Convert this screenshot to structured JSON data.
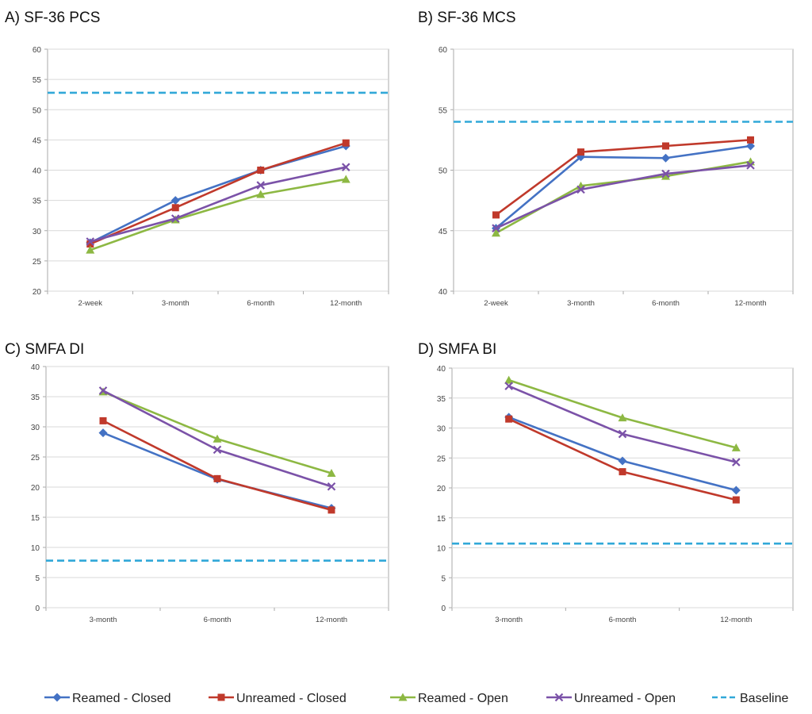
{
  "colors": {
    "reamed_closed": "#4472C4",
    "unreamed_closed": "#C0392B",
    "reamed_open": "#8DB843",
    "unreamed_open": "#7B52A8",
    "baseline": "#31A8D8",
    "grid": "#d9d9d9",
    "axis": "#aaaaaa"
  },
  "legend": {
    "items": [
      {
        "key": "reamed_closed",
        "label": "Reamed - Closed",
        "marker": "diamond"
      },
      {
        "key": "unreamed_closed",
        "label": "Unreamed - Closed",
        "marker": "square"
      },
      {
        "key": "reamed_open",
        "label": "Reamed - Open",
        "marker": "triangle"
      },
      {
        "key": "unreamed_open",
        "label": "Unreamed - Open",
        "marker": "x"
      },
      {
        "key": "baseline",
        "label": "Baseline",
        "marker": "dash"
      }
    ]
  },
  "chart_data": [
    {
      "type": "line",
      "title": "A) SF-36 PCS",
      "categories": [
        "2-week",
        "3-month",
        "6-month",
        "12-month"
      ],
      "ylim": [
        20,
        60
      ],
      "yticks": [
        20,
        25,
        30,
        35,
        40,
        45,
        50,
        55,
        60
      ],
      "baseline": 52.8,
      "series": [
        {
          "key": "reamed_closed",
          "name": "Reamed - Closed",
          "values": [
            28.0,
            35.0,
            40.0,
            44.0
          ]
        },
        {
          "key": "unreamed_closed",
          "name": "Unreamed - Closed",
          "values": [
            27.8,
            33.8,
            40.0,
            44.5
          ]
        },
        {
          "key": "reamed_open",
          "name": "Reamed - Open",
          "values": [
            26.8,
            31.8,
            36.0,
            38.5
          ]
        },
        {
          "key": "unreamed_open",
          "name": "Unreamed - Open",
          "values": [
            28.2,
            32.0,
            37.5,
            40.5
          ]
        }
      ]
    },
    {
      "type": "line",
      "title": "B) SF-36 MCS",
      "categories": [
        "2-week",
        "3-month",
        "6-month",
        "12-month"
      ],
      "ylim": [
        40,
        60
      ],
      "yticks": [
        40,
        45,
        50,
        55,
        60
      ],
      "baseline": 54.0,
      "series": [
        {
          "key": "reamed_closed",
          "name": "Reamed - Closed",
          "values": [
            45.2,
            51.1,
            51.0,
            52.0
          ]
        },
        {
          "key": "unreamed_closed",
          "name": "Unreamed - Closed",
          "values": [
            46.3,
            51.5,
            52.0,
            52.5
          ]
        },
        {
          "key": "reamed_open",
          "name": "Reamed - Open",
          "values": [
            44.8,
            48.7,
            49.5,
            50.7
          ]
        },
        {
          "key": "unreamed_open",
          "name": "Unreamed - Open",
          "values": [
            45.2,
            48.4,
            49.7,
            50.4
          ]
        }
      ]
    },
    {
      "type": "line",
      "title": "C) SMFA DI",
      "categories": [
        "3-month",
        "6-month",
        "12-month"
      ],
      "ylim": [
        0,
        40
      ],
      "yticks": [
        0,
        5,
        10,
        15,
        20,
        25,
        30,
        35,
        40
      ],
      "baseline": 7.8,
      "series": [
        {
          "key": "reamed_closed",
          "name": "Reamed - Closed",
          "values": [
            29.0,
            21.3,
            16.5
          ]
        },
        {
          "key": "unreamed_closed",
          "name": "Unreamed - Closed",
          "values": [
            31.0,
            21.4,
            16.2
          ]
        },
        {
          "key": "reamed_open",
          "name": "Reamed - Open",
          "values": [
            35.8,
            28.0,
            22.3
          ]
        },
        {
          "key": "unreamed_open",
          "name": "Unreamed - Open",
          "values": [
            36.0,
            26.2,
            20.1
          ]
        }
      ]
    },
    {
      "type": "line",
      "title": "D) SMFA BI",
      "categories": [
        "3-month",
        "6-month",
        "12-month"
      ],
      "ylim": [
        0,
        40
      ],
      "yticks": [
        0,
        5,
        10,
        15,
        20,
        25,
        30,
        35,
        40
      ],
      "baseline": 10.7,
      "series": [
        {
          "key": "reamed_closed",
          "name": "Reamed - Closed",
          "values": [
            31.8,
            24.5,
            19.6
          ]
        },
        {
          "key": "unreamed_closed",
          "name": "Unreamed - Closed",
          "values": [
            31.5,
            22.7,
            18.0
          ]
        },
        {
          "key": "reamed_open",
          "name": "Reamed - Open",
          "values": [
            38.0,
            31.7,
            26.7
          ]
        },
        {
          "key": "unreamed_open",
          "name": "Unreamed - Open",
          "values": [
            37.0,
            29.0,
            24.3
          ]
        }
      ]
    }
  ]
}
